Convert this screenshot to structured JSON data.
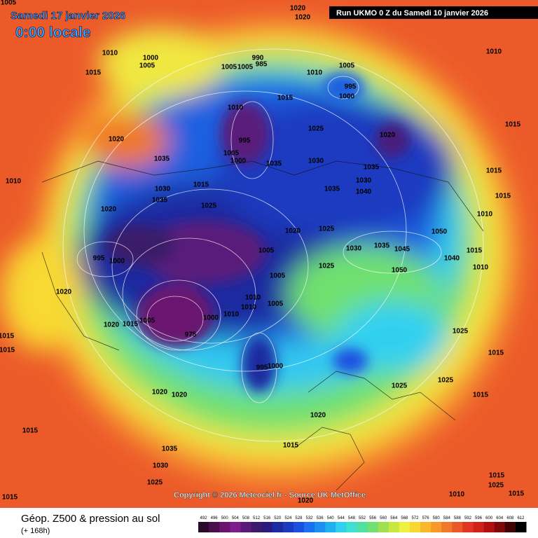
{
  "header": {
    "date": "Samedi 17 janvier 2026",
    "time": "0:00 locale",
    "run": "Run UKMO 0 Z du Samedi 10 janvier 2026"
  },
  "map": {
    "pressure_labels": [
      "1005",
      "1020",
      "1020",
      "1010",
      "1000",
      "1005",
      "1015",
      "990",
      "985",
      "1005",
      "1005",
      "1010",
      "1005",
      "995",
      "1000",
      "1015",
      "1010",
      "1025",
      "1020",
      "1020",
      "995",
      "1005",
      "1000",
      "1035",
      "1035",
      "1030",
      "1035",
      "1030",
      "1040",
      "1035",
      "1010",
      "1015",
      "1030",
      "1035",
      "1020",
      "1025",
      "1020",
      "1025",
      "1050",
      "1010",
      "1015",
      "1015",
      "1015",
      "1010",
      "995",
      "1000",
      "1005",
      "1030",
      "1035",
      "1045",
      "1050",
      "1040",
      "1015",
      "1010",
      "1025",
      "1005",
      "1010",
      "1010",
      "1005",
      "1010",
      "1000",
      "1020",
      "1020",
      "1015",
      "1005",
      "975",
      "1015",
      "1015",
      "1025",
      "1015",
      "995",
      "1000",
      "1025",
      "1025",
      "1015",
      "1020",
      "1020",
      "1015",
      "1020",
      "1015",
      "1035",
      "1030",
      "1025",
      "1015",
      "1025",
      "1010",
      "1015",
      "1020",
      "1015"
    ]
  },
  "copyright": "Copyright © 2026 Meteociel.fr - Source UK MetOffice",
  "footer": {
    "title": "Géop. Z500 & pression au sol",
    "lead": "(+ 168h)"
  },
  "scale": {
    "labels": [
      492,
      496,
      500,
      504,
      508,
      512,
      516,
      520,
      524,
      528,
      532,
      536,
      540,
      544,
      548,
      552,
      556,
      560,
      564,
      568,
      572,
      576,
      580,
      584,
      588,
      592,
      596,
      600,
      604,
      608,
      612
    ],
    "colors": [
      "#2a0a2a",
      "#4a0f4a",
      "#6a1470",
      "#7e1e8c",
      "#5a1a7a",
      "#3a1a6a",
      "#2a1a80",
      "#1a2aa0",
      "#1a3ac0",
      "#1a50e0",
      "#1a70f0",
      "#1a90f0",
      "#20b0f0",
      "#30d0f0",
      "#40e0d0",
      "#50e0a0",
      "#70e070",
      "#a0e050",
      "#c8e840",
      "#f0f040",
      "#f8d830",
      "#f8b828",
      "#f89828",
      "#f07828",
      "#e85828",
      "#e03820",
      "#d02018",
      "#b01010",
      "#800808",
      "#400404",
      "#000000"
    ]
  }
}
